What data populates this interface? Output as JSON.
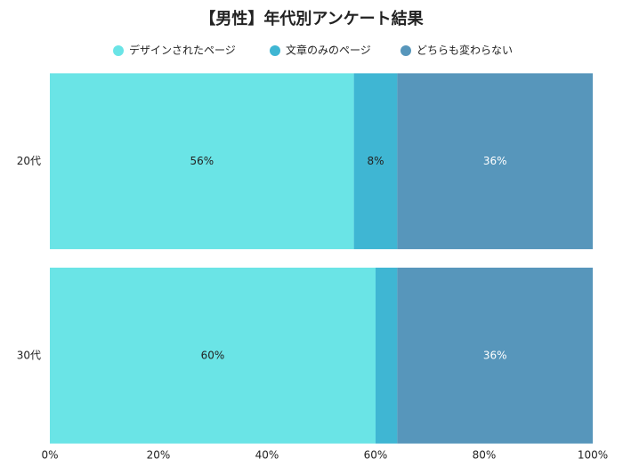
{
  "chart_data": {
    "type": "stacked-bar-horizontal",
    "title": "【男性】年代別アンケート結果",
    "categories": [
      "20代",
      "30代"
    ],
    "series": [
      {
        "name": "デザインされたページ",
        "color": "#6ae4e6",
        "label_color": "#222222",
        "values": [
          56,
          60
        ],
        "value_labels": [
          "56%",
          "60%"
        ]
      },
      {
        "name": "文章のみのページ",
        "color": "#3fb6d3",
        "label_color": "#222222",
        "values": [
          8,
          4
        ],
        "value_labels": [
          "8%",
          null
        ]
      },
      {
        "name": "どちらも変わらない",
        "color": "#5796bb",
        "label_color": "#ffffff",
        "values": [
          36,
          36
        ],
        "value_labels": [
          "36%",
          "36%"
        ]
      }
    ],
    "xlim": [
      0,
      100
    ],
    "xticks": [
      {
        "value": 0,
        "label": "0%"
      },
      {
        "value": 20,
        "label": "20%"
      },
      {
        "value": 40,
        "label": "40%"
      },
      {
        "value": 60,
        "label": "60%"
      },
      {
        "value": 80,
        "label": "80%"
      },
      {
        "value": 100,
        "label": "100%"
      }
    ]
  }
}
